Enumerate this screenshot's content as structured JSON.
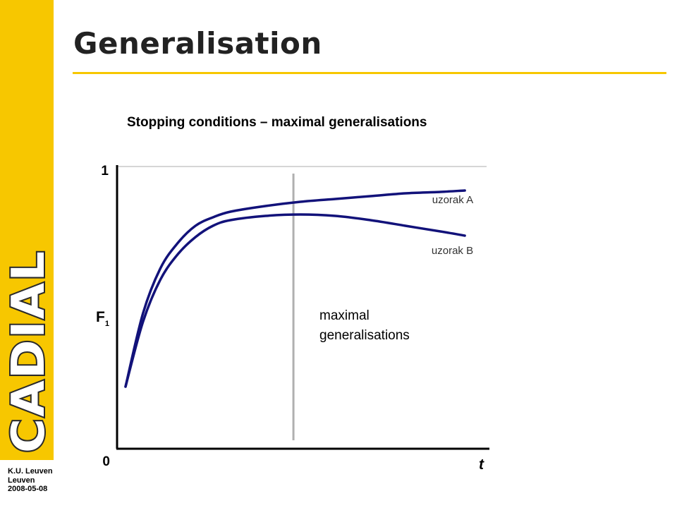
{
  "slide": {
    "title": "Generalisation",
    "subtitle": "Stopping conditions – maximal generalisations",
    "logo_text": "CADIAL",
    "footer": [
      "K.U. Leuven",
      "Leuven",
      "2008-05-08"
    ],
    "colors": {
      "accent": "#f7c700",
      "curve": "#12127a",
      "axis": "#000000",
      "guide": "#b0b0b0"
    }
  },
  "chart_data": {
    "type": "line",
    "xlabel": "t",
    "ylabel": "F",
    "ylabel_subscript": "1",
    "y_ticks": [
      "0",
      "1"
    ],
    "ylim": [
      0,
      1
    ],
    "xlim": [
      0,
      1
    ],
    "series": [
      {
        "name": "uzorak A",
        "x": [
          0.0,
          0.05,
          0.1,
          0.15,
          0.2,
          0.25,
          0.3,
          0.4,
          0.5,
          0.6,
          0.7,
          0.8,
          0.9,
          0.97
        ],
        "y": [
          0.22,
          0.48,
          0.64,
          0.73,
          0.79,
          0.82,
          0.84,
          0.86,
          0.875,
          0.885,
          0.895,
          0.905,
          0.91,
          0.915
        ]
      },
      {
        "name": "uzorak B",
        "x": [
          0.0,
          0.05,
          0.1,
          0.15,
          0.2,
          0.25,
          0.3,
          0.4,
          0.5,
          0.6,
          0.7,
          0.8,
          0.9,
          0.97
        ],
        "y": [
          0.22,
          0.45,
          0.6,
          0.69,
          0.75,
          0.79,
          0.81,
          0.825,
          0.83,
          0.825,
          0.81,
          0.79,
          0.77,
          0.755
        ]
      }
    ],
    "annotation": {
      "lines": [
        "maximal",
        "generalisations"
      ],
      "x": 0.48
    }
  }
}
